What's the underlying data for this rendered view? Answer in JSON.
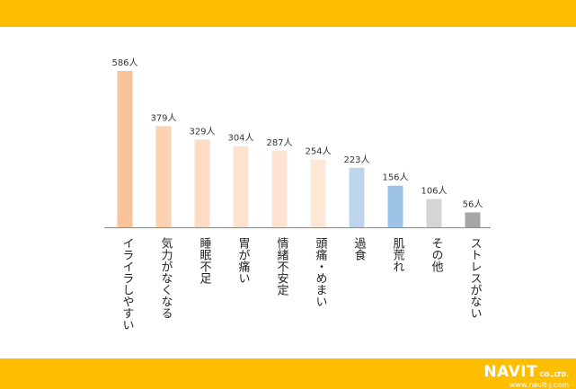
{
  "colors": {
    "band": "#ffbf00",
    "bars": [
      "#f9c49a",
      "#fbd1b0",
      "#fcdcc4",
      "#fde2cf",
      "#fde4d2",
      "#fde7d6",
      "#bcd5ec",
      "#9dc3e6",
      "#d5d5d5",
      "#a6a6a6"
    ]
  },
  "logo": {
    "brand": "NAVIT",
    "company": "CO.,LTD.",
    "url": "www.navit-j.com"
  },
  "chart_data": {
    "type": "bar",
    "categories": [
      "イライラしやすい",
      "気力がなくなる",
      "睡眠不足",
      "胃が痛い",
      "情緒不安定",
      "頭痛・めまい",
      "過食",
      "肌荒れ",
      "その他",
      "ストレスがない"
    ],
    "values": [
      586,
      379,
      329,
      304,
      287,
      254,
      223,
      156,
      106,
      56
    ],
    "data_labels": [
      "586人",
      "379人",
      "329人",
      "304人",
      "287人",
      "254人",
      "223人",
      "156人",
      "106人",
      "56人"
    ],
    "unit": "人",
    "ylim": [
      0,
      586
    ],
    "grid": false,
    "legend": "none"
  }
}
